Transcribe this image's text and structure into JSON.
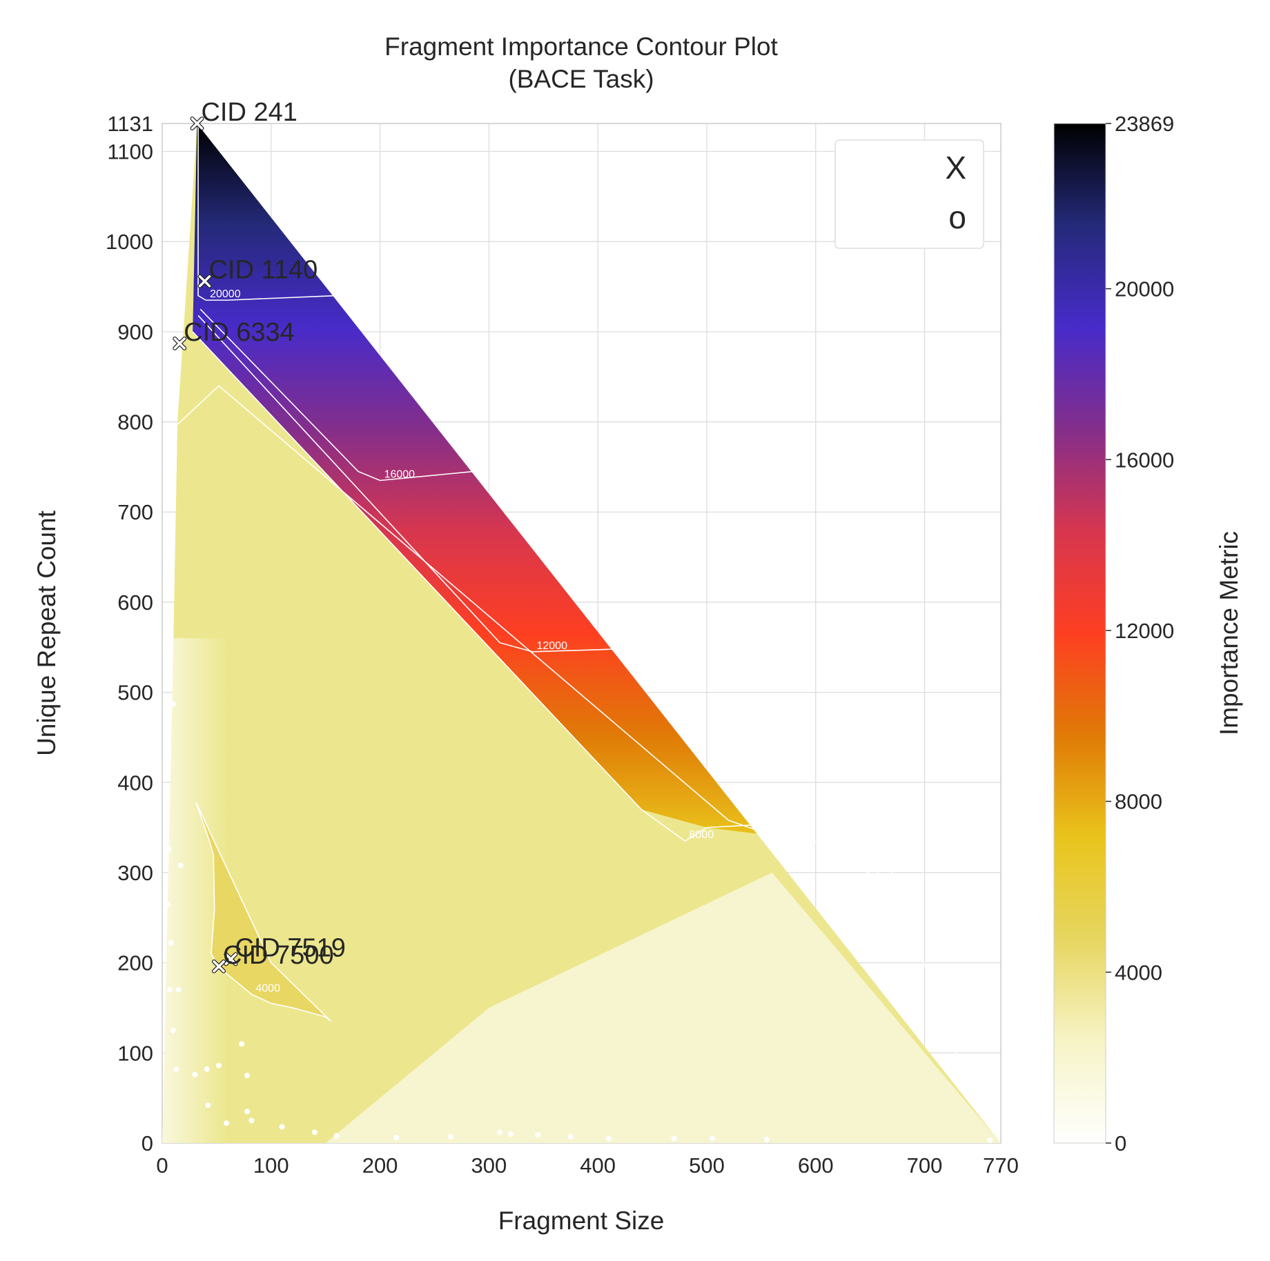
{
  "chart_data": {
    "type": "heatmap",
    "subtype": "filled contour",
    "title": [
      "Fragment Importance Contour Plot",
      "(BACE Task)"
    ],
    "xlabel": "Fragment Size",
    "ylabel": "Unique Repeat Count",
    "colorbar_label": "Importance Metric",
    "xlim": [
      0,
      770
    ],
    "ylim": [
      0,
      1131
    ],
    "x_ticks": [
      "0",
      "100",
      "200",
      "300",
      "400",
      "500",
      "600",
      "700",
      "770"
    ],
    "y_ticks": [
      "0",
      "100",
      "200",
      "300",
      "400",
      "500",
      "600",
      "700",
      "800",
      "900",
      "1000",
      "1100",
      "1131"
    ],
    "colorbar_ticks": [
      "0",
      "4000",
      "8000",
      "12000",
      "16000",
      "20000",
      "23869"
    ],
    "colorbar_range": [
      0,
      23869
    ],
    "colormap": [
      "#ffffff",
      "#f7f4c6",
      "#e6d660",
      "#e9c41c",
      "#e07a06",
      "#fe3f22",
      "#d7364f",
      "#842e8b",
      "#472bc9",
      "#252a7a",
      "#000000"
    ],
    "grid": true,
    "contour_levels": [
      {
        "label": "4000",
        "path": [
          [
            14,
            797
          ],
          [
            52,
            840
          ],
          [
            520,
            358
          ],
          [
            560,
            341
          ],
          [
            600,
            334
          ],
          [
            657,
            294
          ],
          [
            655,
            342
          ],
          [
            660,
            334
          ],
          [
            748,
            34
          ]
        ]
      },
      {
        "label": "8000",
        "path": [
          [
            28,
            900
          ],
          [
            440,
            370
          ],
          [
            480,
            335
          ],
          [
            500,
            350
          ],
          [
            545,
            353
          ]
        ]
      },
      {
        "label": "12000",
        "path": [
          [
            33,
            918
          ],
          [
            310,
            555
          ],
          [
            340,
            545
          ],
          [
            420,
            548
          ]
        ]
      },
      {
        "label": "16000",
        "path": [
          [
            35,
            925
          ],
          [
            180,
            745
          ],
          [
            200,
            735
          ],
          [
            286,
            745
          ]
        ]
      },
      {
        "label": "20000",
        "path": [
          [
            33,
            1131
          ],
          [
            33,
            940
          ],
          [
            40,
            935
          ],
          [
            60,
            935
          ],
          [
            160,
            940
          ]
        ]
      },
      {
        "label": "4000",
        "path": [
          [
            31,
            378
          ],
          [
            42,
            340
          ],
          [
            47,
            320
          ],
          [
            48,
            260
          ],
          [
            45,
            210
          ],
          [
            52,
            195
          ],
          [
            62,
            185
          ],
          [
            82,
            165
          ],
          [
            100,
            155
          ],
          [
            120,
            150
          ],
          [
            135,
            145
          ],
          [
            150,
            140
          ],
          [
            155,
            135
          ],
          [
            100,
            200
          ],
          [
            31,
            378
          ]
        ]
      }
    ],
    "annotations": [
      {
        "label": "CID 241",
        "x": 32,
        "y": 1131
      },
      {
        "label": "CID 1140",
        "x": 39,
        "y": 956
      },
      {
        "label": "CID 6334",
        "x": 16,
        "y": 887
      },
      {
        "label": "CID 7519",
        "x": 63,
        "y": 204
      },
      {
        "label": "CID 7500",
        "x": 52,
        "y": 196
      }
    ],
    "legend": {
      "placement": "top-right",
      "entries": [
        "X",
        "o"
      ]
    },
    "scatter_points": [
      [
        10,
        487
      ],
      [
        6,
        326
      ],
      [
        17,
        308
      ],
      [
        5,
        265
      ],
      [
        8,
        222
      ],
      [
        7,
        170
      ],
      [
        15,
        170
      ],
      [
        10,
        125
      ],
      [
        13,
        82
      ],
      [
        41,
        82
      ],
      [
        52,
        86
      ],
      [
        73,
        110
      ],
      [
        59,
        22
      ],
      [
        30,
        76
      ],
      [
        42,
        42
      ],
      [
        78,
        75
      ],
      [
        78,
        35
      ],
      [
        82,
        25
      ],
      [
        110,
        18
      ],
      [
        140,
        12
      ],
      [
        160,
        8
      ],
      [
        215,
        6
      ],
      [
        265,
        7
      ],
      [
        310,
        12
      ],
      [
        320,
        10
      ],
      [
        345,
        9
      ],
      [
        375,
        7
      ],
      [
        410,
        5
      ],
      [
        470,
        5
      ],
      [
        505,
        5
      ],
      [
        555,
        4
      ],
      [
        760,
        3
      ]
    ]
  }
}
